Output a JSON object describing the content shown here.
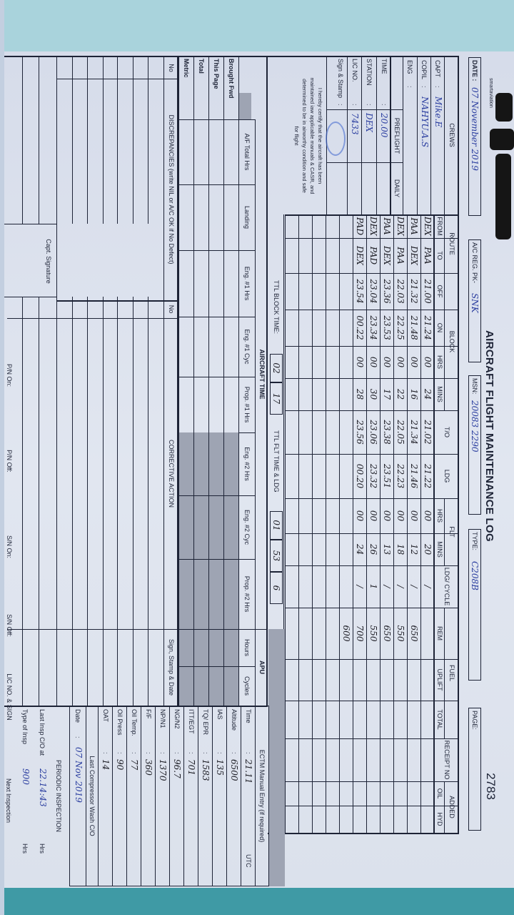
{
  "header": {
    "logo": "smartaviation",
    "title": "AIRCRAFT FLIGHT MAINTENANCE LOG",
    "page_number": "2783",
    "date_label": "DATE :",
    "date_value": "07 November 2019",
    "reg_label": "A/C REG. PK-",
    "reg_value": "SNK",
    "msn_label": "MSN:",
    "msn_value": "20083 2290",
    "type_label": "TYPE:",
    "type_value": "C208B",
    "page_label": "PAGE:"
  },
  "crews": {
    "title": "CREWS",
    "capt_label": "CAPT",
    "capt_value": "Mike.E",
    "copil_label": "COPIL",
    "copil_value": "NAHYU.A.S",
    "eng_label": "ENG",
    "sep": ":",
    "preflight_label": "PREFLIGHT",
    "daily_label": "DAILY",
    "time_label": "TIME",
    "time_value": "20.00",
    "station_label": "STATION",
    "station_value": "DEX",
    "lic_label": "LIC NO.",
    "lic_value": "7433",
    "sign_label": "Sign & Stamp",
    "certification": [
      "I hereby certify that the aircraft has been",
      "maintained iaw applicable manuals & CASR, and",
      "determined to be in airworthy condition and safe",
      "for flight"
    ]
  },
  "log_table": {
    "groups": {
      "route": "ROUTE",
      "block": "BLOCK",
      "to": "T/O",
      "ldg": "LDG",
      "flt": "FLT",
      "ldg_cycle": "LDG/ CYCLE",
      "fuel": "FUEL",
      "receipt": "RECEIPT NO",
      "added": "ADDED"
    },
    "subheaders": {
      "from": "FROM",
      "to": "TO",
      "off": "OFF",
      "on": "ON",
      "block_hrs": "HRS",
      "block_mins": "MINS",
      "flt_hrs": "HRS",
      "flt_mins": "MINS",
      "rem": "REM",
      "uplift": "UPLIFT",
      "total": "TOTAL",
      "oil": "OIL",
      "hyd": "HYD"
    },
    "rows": [
      {
        "from": "DEX",
        "to": "PAA",
        "off": "21.00",
        "on": "21.24",
        "block_hrs": "00",
        "block_mins": "24",
        "takeoff": "21.02",
        "landing": "21.22",
        "flt_hrs": "00",
        "flt_mins": "20",
        "cycle": "/",
        "rem": ""
      },
      {
        "from": "PAA",
        "to": "DEX",
        "off": "21.32",
        "on": "21.48",
        "block_hrs": "00",
        "block_mins": "16",
        "takeoff": "21.34",
        "landing": "21.46",
        "flt_hrs": "00",
        "flt_mins": "12",
        "cycle": "/",
        "rem": "650"
      },
      {
        "from": "DEX",
        "to": "PAA",
        "off": "22.03",
        "on": "22.25",
        "block_hrs": "00",
        "block_mins": "22",
        "takeoff": "22.05",
        "landing": "22.23",
        "flt_hrs": "00",
        "flt_mins": "18",
        "cycle": "/",
        "rem": "550"
      },
      {
        "from": "PAA",
        "to": "DEX",
        "off": "23.36",
        "on": "23.53",
        "block_hrs": "00",
        "block_mins": "17",
        "takeoff": "23.38",
        "landing": "23.51",
        "flt_hrs": "00",
        "flt_mins": "13",
        "cycle": "/",
        "rem": "650"
      },
      {
        "from": "DEX",
        "to": "PAD",
        "off": "23.04",
        "on": "23.34",
        "block_hrs": "00",
        "block_mins": "30",
        "takeoff": "23.06",
        "landing": "23.32",
        "flt_hrs": "00",
        "flt_mins": "26",
        "cycle": "1",
        "rem": "550"
      },
      {
        "from": "PAD",
        "to": "DEX",
        "off": "23.54",
        "on": "00.22",
        "block_hrs": "00",
        "block_mins": "28",
        "takeoff": "23.56",
        "landing": "00.20",
        "flt_hrs": "00",
        "flt_mins": "24",
        "cycle": "/",
        "rem": "700"
      },
      {
        "from": "",
        "to": "",
        "off": "",
        "on": "",
        "block_hrs": "",
        "block_mins": "",
        "takeoff": "",
        "landing": "",
        "flt_hrs": "",
        "flt_mins": "",
        "cycle": "",
        "rem": "600"
      }
    ],
    "ttl_block_label": "TTL BLOCK TIME:",
    "ttl_block_hrs": "02",
    "ttl_block_mins": "17",
    "ttl_flt_label": "TTL FLT TIME & LDG",
    "ttl_flt_hrs": "01",
    "ttl_flt_mins": "53",
    "ttl_ldg": "6"
  },
  "aircraft_time": {
    "title": "AIRCRAFT TIME",
    "columns": [
      "A/F Total Hrs",
      "Landing",
      "Eng. #1 Hrs",
      "Eng. #1 Cyc",
      "Prop. #1 Hrs",
      "Eng. #2 Hrs",
      "Eng. #2 Cyc",
      "Prop. #2 Hrs"
    ],
    "rows": [
      "Brought Fwd",
      "This Page",
      "Total",
      "Metric"
    ],
    "apu_title": "APU",
    "apu_columns": [
      "Hours",
      "Cycles"
    ]
  },
  "ectm": {
    "title": "ECTM Manual Entry (if required)",
    "rows": [
      {
        "label": "Time",
        "value": "21.11",
        "unit": "UTC"
      },
      {
        "label": "Altitude",
        "value": "6500",
        "unit": ""
      },
      {
        "label": "IAS",
        "value": "135",
        "unit": ""
      },
      {
        "label": "TQ/ EPR",
        "value": "1583",
        "unit": ""
      },
      {
        "label": "ITT/EGT",
        "value": "701",
        "unit": ""
      },
      {
        "label": "NG/N2",
        "value": "96.7",
        "unit": ""
      },
      {
        "label": "NP/N1",
        "value": "1370",
        "unit": ""
      },
      {
        "label": "F/F",
        "value": "360",
        "unit": ""
      },
      {
        "label": "Oil Temp.",
        "value": "77",
        "unit": ""
      },
      {
        "label": "Oil Press",
        "value": "90",
        "unit": ""
      },
      {
        "label": "OAT",
        "value": "14",
        "unit": ""
      }
    ],
    "compressor_wash_label": "Last Compressor Wash C/O",
    "wash_date_label": "Date",
    "wash_date_value": "07 Nov 2019",
    "periodic_title": "PERIODIC INSPECTION",
    "last_insp_label": "Last Insp C/O at",
    "last_insp_value": "22.14:43",
    "last_insp_unit": "Hrs",
    "type_insp_label": "Type of Insp",
    "type_insp_value": "900",
    "type_insp_unit": "Hrs",
    "next_insp_label": "Next Inspection"
  },
  "discrepancies": {
    "no_label": "No",
    "title": "DISCREPANCIES (write NIL or A/C OK if No Defect)",
    "corr_no_label": "No",
    "corrective_title": "CORRECTIVE ACTION",
    "sign_label": "Sign, Stamp & Date",
    "capt_signature_label": "Capt. Signature"
  },
  "footer": {
    "pn_on": "P/N On:",
    "pn_off": "P/N Off:",
    "sn_on": "S/N On:",
    "sn_off": "S/N Off:",
    "lic_sign": "LIC NO. & SIGN"
  },
  "colors": {
    "ink": "#1d2336",
    "pen_blue": "#2b3ea0",
    "paper": "#dbe1ec",
    "shade": "#9ea4b3"
  }
}
